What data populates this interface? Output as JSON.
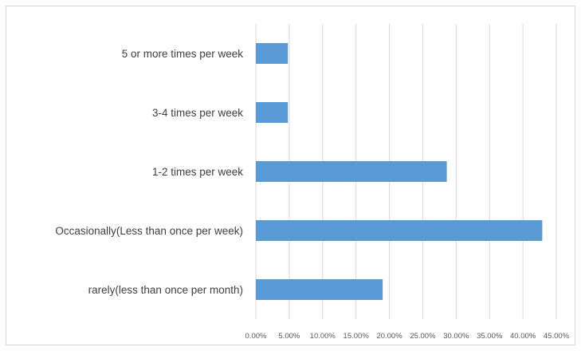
{
  "chart_data": {
    "type": "bar",
    "orientation": "horizontal",
    "title": "",
    "xlabel": "",
    "ylabel": "",
    "categories": [
      "5 or more times per week",
      "3-4 times per week",
      "1-2 times per week",
      "Occasionally(Less than once per week)",
      "rarely(less than once per month)"
    ],
    "values": [
      4.8,
      4.8,
      28.6,
      42.9,
      19.0
    ],
    "xlim": [
      0,
      45
    ],
    "x_ticks": [
      0,
      5,
      10,
      15,
      20,
      25,
      30,
      35,
      40,
      45
    ],
    "x_tick_labels": [
      "0.00%",
      "5.00%",
      "10.00%",
      "15.00%",
      "20.00%",
      "25.00%",
      "30.00%",
      "35.00%",
      "40.00%",
      "45.00%"
    ],
    "grid": "vertical",
    "legend": "none",
    "bar_color": "#5b9bd5",
    "grid_color": "#d9d9d9"
  }
}
